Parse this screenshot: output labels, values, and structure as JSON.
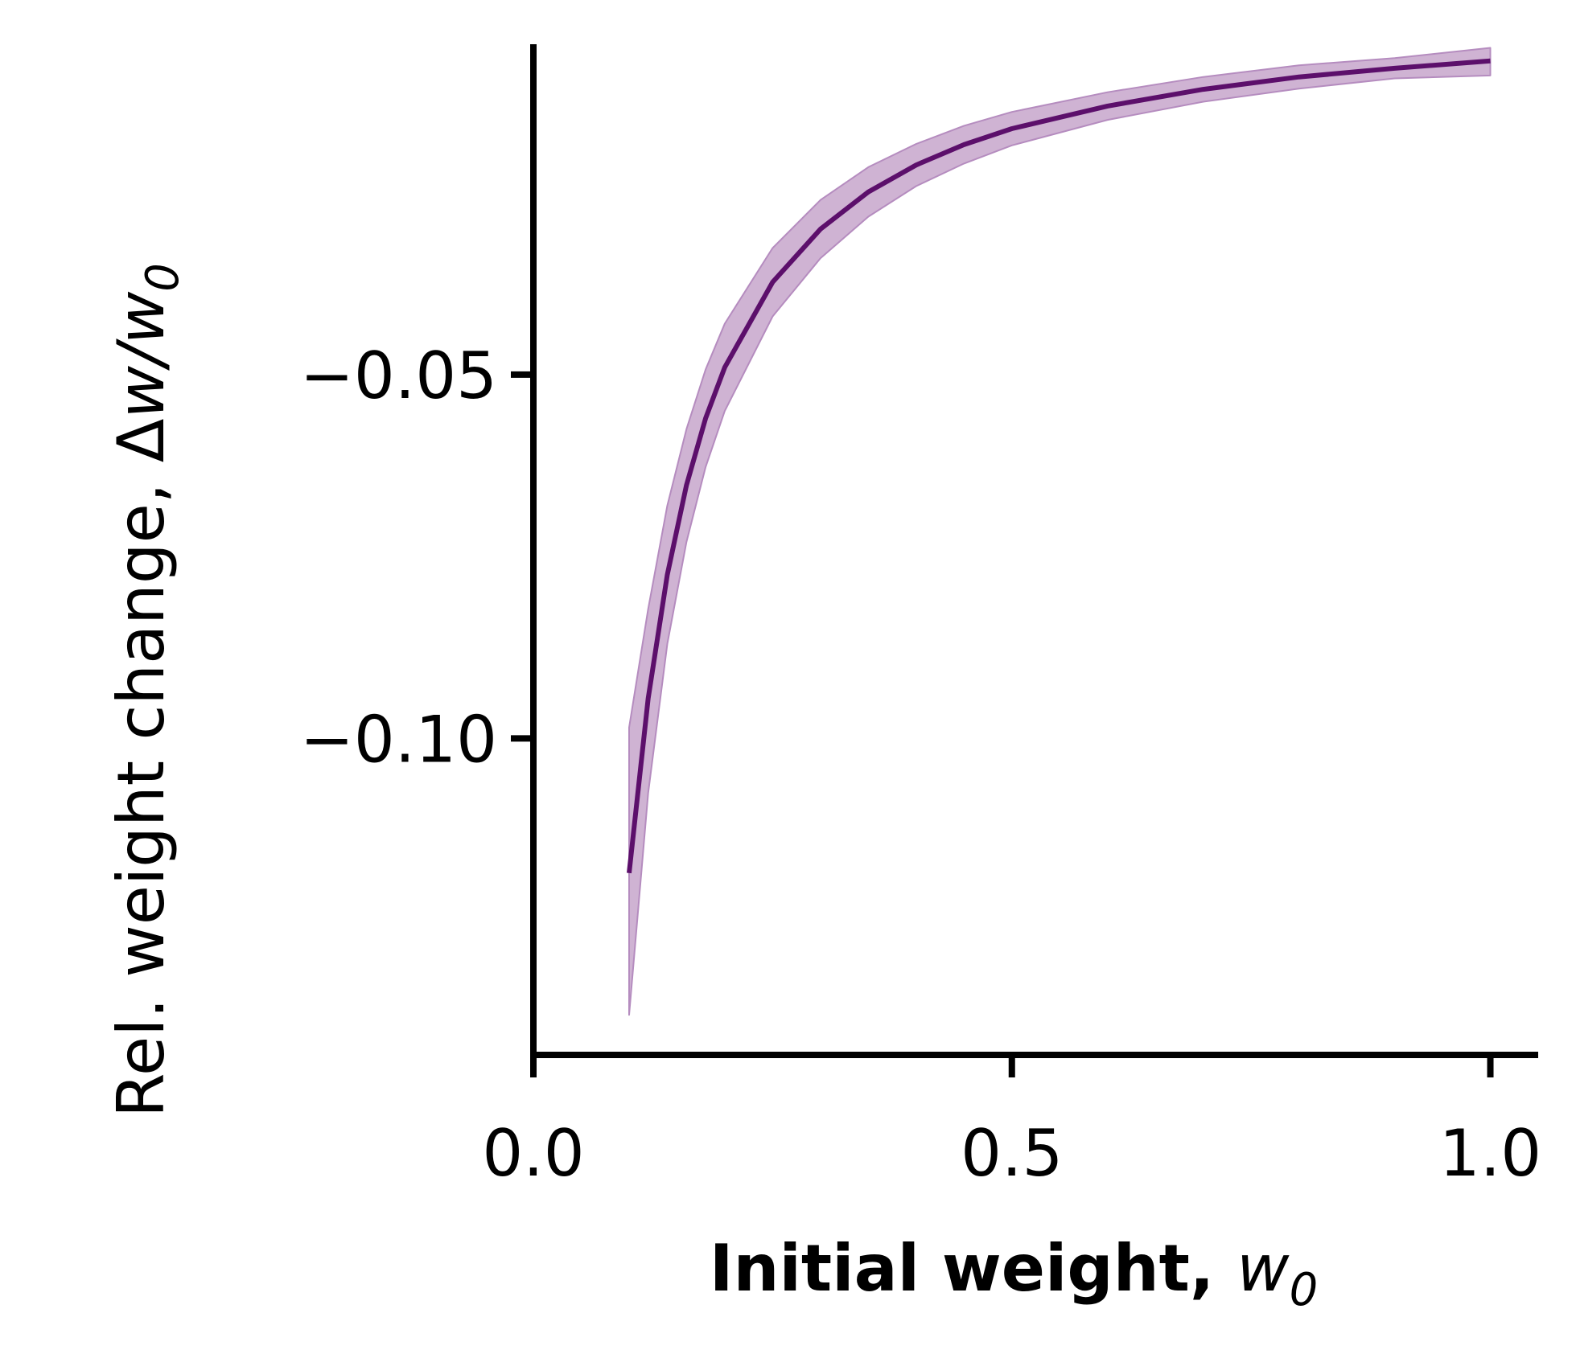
{
  "chart_data": {
    "type": "line",
    "title": "",
    "xlabel": {
      "text": "Initial weight, ",
      "math_symbol": "w",
      "math_subscript": "0"
    },
    "ylabel": {
      "text": "Rel. weight change, Δ",
      "math_symbol": "w",
      "math_rest": "/w",
      "math_subscript": "0"
    },
    "xlim": [
      0.0,
      1.05
    ],
    "ylim": [
      -0.1435,
      -0.0046
    ],
    "x_ticks": [
      {
        "value": 0.0,
        "label": "0.0"
      },
      {
        "value": 0.5,
        "label": "0.5"
      },
      {
        "value": 1.0,
        "label": "1.0"
      }
    ],
    "y_ticks": [
      {
        "value": -0.05,
        "label": "−0.05"
      },
      {
        "value": -0.1,
        "label": "−0.10"
      }
    ],
    "grid": false,
    "legend": "none",
    "colors": {
      "line": "#5c0f6b",
      "band": "#cfb3d3",
      "band_edge": "#b58cbf",
      "axis": "#000000"
    },
    "series": [
      {
        "x": [
          0.1,
          0.12,
          0.14,
          0.16,
          0.18,
          0.2,
          0.25,
          0.3,
          0.35,
          0.4,
          0.45,
          0.5,
          0.6,
          0.7,
          0.8,
          0.9,
          1.0
        ],
        "y": [
          -0.1185,
          -0.0945,
          -0.0775,
          -0.0652,
          -0.056,
          -0.049,
          -0.0373,
          -0.03,
          -0.0249,
          -0.0212,
          -0.0184,
          -0.0162,
          -0.0131,
          -0.0108,
          -0.0091,
          -0.0079,
          -0.0069
        ],
        "y_lower": [
          -0.138,
          -0.1075,
          -0.087,
          -0.073,
          -0.0627,
          -0.055,
          -0.042,
          -0.034,
          -0.0283,
          -0.0241,
          -0.021,
          -0.0185,
          -0.015,
          -0.0125,
          -0.0107,
          -0.0093,
          -0.0089
        ],
        "y_upper": [
          -0.0985,
          -0.0822,
          -0.068,
          -0.0575,
          -0.0493,
          -0.043,
          -0.0326,
          -0.026,
          -0.0215,
          -0.0183,
          -0.0158,
          -0.0139,
          -0.0112,
          -0.0091,
          -0.0075,
          -0.0065,
          -0.0051
        ]
      }
    ]
  }
}
